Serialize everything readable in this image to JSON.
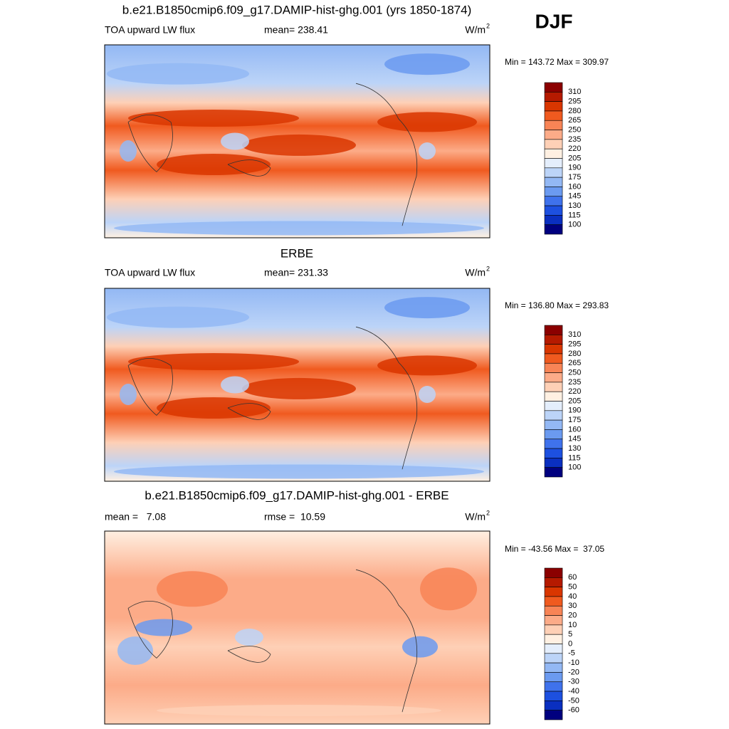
{
  "figure_title": "DJF",
  "panels": [
    {
      "title": "b.e21.B1850cmip6.f09_g17.DAMIP-hist-ghg.001 (yrs 1850-1874)",
      "left_label": "TOA upward LW flux",
      "center_label": "mean= 238.41",
      "unit": "W/m",
      "unit_superscript": "2",
      "min_max": "Min = 143.72 Max = 309.97",
      "colorbar": {
        "labels": [
          310,
          295,
          280,
          265,
          250,
          235,
          220,
          205,
          190,
          175,
          160,
          145,
          130,
          115,
          100
        ],
        "colors": [
          "#8b0000",
          "#b51a00",
          "#d93600",
          "#f05a1f",
          "#f88456",
          "#fcab88",
          "#fed0b6",
          "#fff0e2",
          "#e4eefc",
          "#bcd4f8",
          "#93b8f4",
          "#6b9af0",
          "#3f72ec",
          "#1d50e0",
          "#0a2fc0",
          "#00007f"
        ]
      }
    },
    {
      "title": "ERBE",
      "left_label": "TOA upward LW flux",
      "center_label": "mean= 231.33",
      "unit": "W/m",
      "unit_superscript": "2",
      "min_max": "Min = 136.80 Max = 293.83",
      "colorbar": {
        "labels": [
          310,
          295,
          280,
          265,
          250,
          235,
          220,
          205,
          190,
          175,
          160,
          145,
          130,
          115,
          100
        ],
        "colors": [
          "#8b0000",
          "#b51a00",
          "#d93600",
          "#f05a1f",
          "#f88456",
          "#fcab88",
          "#fed0b6",
          "#fff0e2",
          "#e4eefc",
          "#bcd4f8",
          "#93b8f4",
          "#6b9af0",
          "#3f72ec",
          "#1d50e0",
          "#0a2fc0",
          "#00007f"
        ]
      }
    },
    {
      "title": "b.e21.B1850cmip6.f09_g17.DAMIP-hist-ghg.001 - ERBE",
      "left_label": "mean =   7.08",
      "center_label": "rmse =  10.59",
      "unit": "W/m",
      "unit_superscript": "2",
      "min_max": "Min = -43.56 Max =  37.05",
      "colorbar": {
        "labels": [
          60,
          50,
          40,
          30,
          20,
          10,
          5,
          0,
          -5,
          -10,
          -20,
          -30,
          -40,
          -50,
          -60
        ],
        "colors": [
          "#8b0000",
          "#b51a00",
          "#d93600",
          "#f05a1f",
          "#f88456",
          "#fcab88",
          "#fed0b6",
          "#fff0e2",
          "#e4eefc",
          "#bcd4f8",
          "#93b8f4",
          "#6b9af0",
          "#3f72ec",
          "#1d50e0",
          "#0a2fc0",
          "#00007f"
        ]
      }
    }
  ]
}
